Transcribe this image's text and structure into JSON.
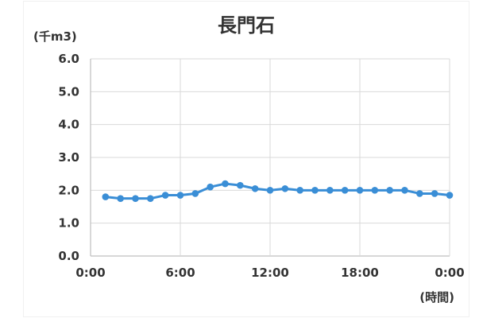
{
  "chart_data": {
    "type": "line",
    "title": "長門石",
    "ylabel": "(千m3)",
    "xlabel": "(時間)",
    "ylim": [
      0,
      6
    ],
    "y_ticks": [
      "0.0",
      "1.0",
      "2.0",
      "3.0",
      "4.0",
      "5.0",
      "6.0"
    ],
    "xlim": [
      0,
      24
    ],
    "x_ticks": [
      "0:00",
      "6:00",
      "12:00",
      "18:00",
      "0:00"
    ],
    "grid": true,
    "series": [
      {
        "color": "#3a8ed6",
        "x": [
          1,
          2,
          3,
          4,
          5,
          6,
          7,
          8,
          9,
          10,
          11,
          12,
          13,
          14,
          15,
          16,
          17,
          18,
          19,
          20,
          21,
          22,
          23,
          24
        ],
        "y": [
          1.8,
          1.75,
          1.75,
          1.75,
          1.85,
          1.85,
          1.9,
          2.1,
          2.2,
          2.15,
          2.05,
          2.0,
          2.05,
          2.0,
          2.0,
          2.0,
          2.0,
          2.0,
          2.0,
          2.0,
          2.0,
          1.9,
          1.9,
          1.85
        ]
      }
    ]
  }
}
